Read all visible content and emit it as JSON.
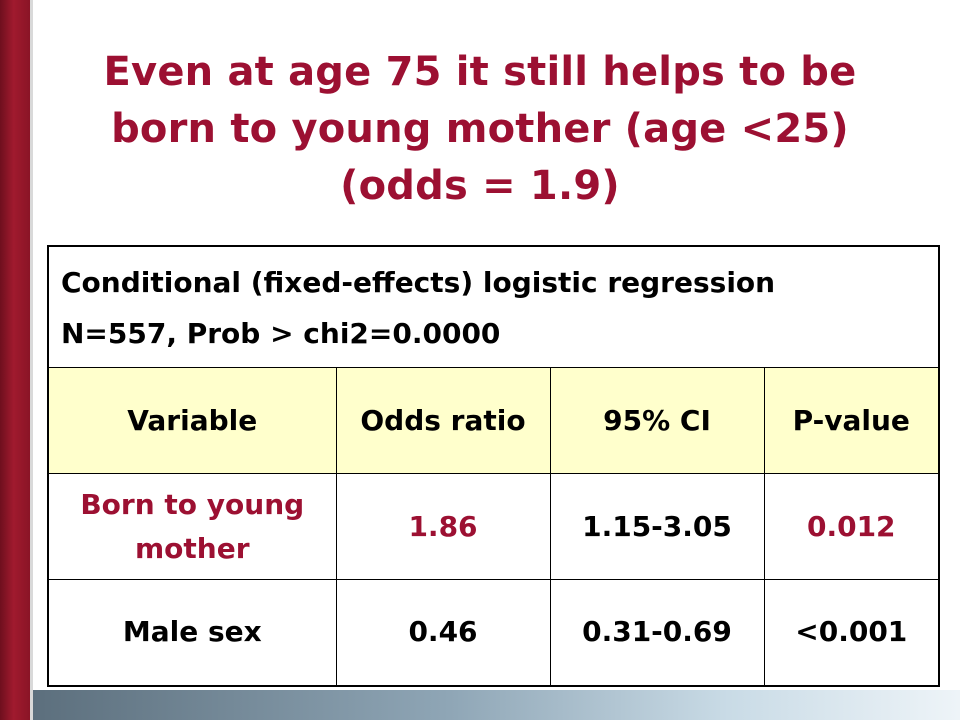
{
  "slide": {
    "title_lines": [
      "Even at age 75 it still helps to be",
      "born to young mother (age <25)",
      "(odds = 1.9)"
    ]
  },
  "table": {
    "info_lines": [
      "Conditional (fixed-effects) logistic regression",
      "N=557, Prob > chi2=0.0000"
    ],
    "headers": [
      "Variable",
      "Odds ratio",
      "95% CI",
      "P-value"
    ],
    "rows": [
      {
        "variable": "Born to young mother",
        "odds_ratio": "1.86",
        "ci": "1.15-3.05",
        "p_value": "0.012"
      },
      {
        "variable": "Male sex",
        "odds_ratio": "0.46",
        "ci": "0.31-0.69",
        "p_value": "<0.001"
      }
    ]
  },
  "colors": {
    "accent": "#9c1032",
    "header_fill": "#ffffcc"
  }
}
